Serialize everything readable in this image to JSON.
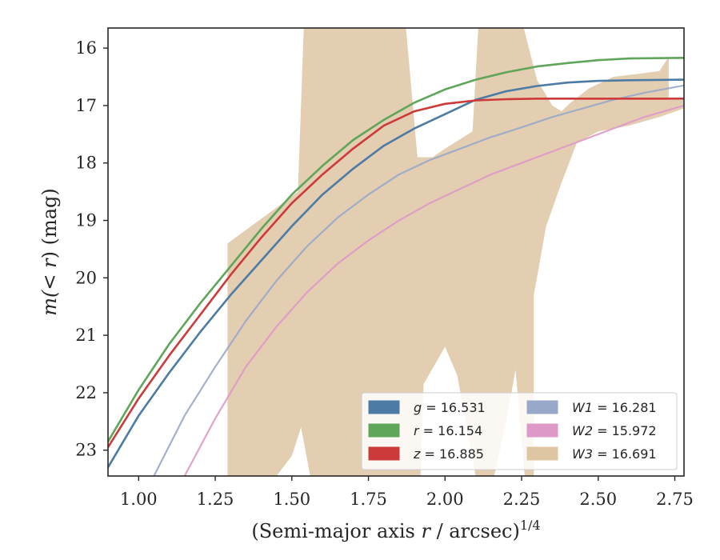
{
  "chart_data": {
    "type": "line",
    "xlabel": "(Semi-major axis",
    "xlabel_var": "r",
    "xlabel_unit": "/ arcsec)",
    "xlabel_exp": "1/4",
    "ylabel_prefix": "m(",
    "ylabel_var": "< r",
    "ylabel_suffix": ") (mag)",
    "xlim": [
      0.9,
      2.78
    ],
    "ylim": [
      23.45,
      15.65
    ],
    "y_inverted": true,
    "xticks": [
      "1.00",
      "1.25",
      "1.50",
      "1.75",
      "2.00",
      "2.25",
      "2.50",
      "2.75"
    ],
    "xtick_values": [
      1.0,
      1.25,
      1.5,
      1.75,
      2.0,
      2.25,
      2.5,
      2.75
    ],
    "yticks": [
      "16",
      "17",
      "18",
      "19",
      "20",
      "21",
      "22",
      "23"
    ],
    "ytick_values": [
      16,
      17,
      18,
      19,
      20,
      21,
      22,
      23
    ],
    "grid": false,
    "legend_position": "lower-right",
    "legend": [
      {
        "var": "g",
        "text": " = 16.531",
        "color": "#4c7ba6"
      },
      {
        "var": "r",
        "text": " = 16.154",
        "color": "#5fa55a"
      },
      {
        "var": "z",
        "text": " = 16.885",
        "color": "#cc3a3a"
      },
      {
        "var": "W1",
        "text": " = 16.281",
        "color": "#98a8c8"
      },
      {
        "var": "W2",
        "text": " = 15.972",
        "color": "#dd99c8"
      },
      {
        "var": "W3",
        "text": " = 16.691",
        "color": "#dfc6a3"
      }
    ],
    "series": [
      {
        "name": "g",
        "color": "#4c7ba6",
        "points": [
          [
            0.9,
            23.3
          ],
          [
            1.0,
            22.4
          ],
          [
            1.1,
            21.65
          ],
          [
            1.2,
            20.95
          ],
          [
            1.3,
            20.3
          ],
          [
            1.4,
            19.7
          ],
          [
            1.5,
            19.1
          ],
          [
            1.6,
            18.55
          ],
          [
            1.7,
            18.1
          ],
          [
            1.8,
            17.7
          ],
          [
            1.9,
            17.4
          ],
          [
            2.0,
            17.15
          ],
          [
            2.1,
            16.9
          ],
          [
            2.2,
            16.75
          ],
          [
            2.3,
            16.66
          ],
          [
            2.4,
            16.6
          ],
          [
            2.5,
            16.57
          ],
          [
            2.6,
            16.56
          ],
          [
            2.78,
            16.55
          ]
        ]
      },
      {
        "name": "r",
        "color": "#5fa55a",
        "points": [
          [
            0.9,
            22.85
          ],
          [
            1.0,
            21.95
          ],
          [
            1.1,
            21.15
          ],
          [
            1.2,
            20.45
          ],
          [
            1.3,
            19.8
          ],
          [
            1.4,
            19.15
          ],
          [
            1.5,
            18.55
          ],
          [
            1.6,
            18.05
          ],
          [
            1.7,
            17.6
          ],
          [
            1.8,
            17.25
          ],
          [
            1.9,
            16.95
          ],
          [
            2.0,
            16.72
          ],
          [
            2.1,
            16.55
          ],
          [
            2.2,
            16.42
          ],
          [
            2.3,
            16.32
          ],
          [
            2.4,
            16.26
          ],
          [
            2.5,
            16.21
          ],
          [
            2.6,
            16.18
          ],
          [
            2.78,
            16.17
          ]
        ]
      },
      {
        "name": "z",
        "color": "#cc3a3a",
        "points": [
          [
            0.9,
            22.95
          ],
          [
            1.0,
            22.1
          ],
          [
            1.1,
            21.35
          ],
          [
            1.2,
            20.65
          ],
          [
            1.3,
            19.95
          ],
          [
            1.4,
            19.3
          ],
          [
            1.5,
            18.7
          ],
          [
            1.6,
            18.2
          ],
          [
            1.7,
            17.75
          ],
          [
            1.8,
            17.35
          ],
          [
            1.9,
            17.1
          ],
          [
            2.0,
            16.97
          ],
          [
            2.1,
            16.91
          ],
          [
            2.2,
            16.89
          ],
          [
            2.3,
            16.88
          ],
          [
            2.5,
            16.88
          ],
          [
            2.78,
            16.88
          ]
        ]
      },
      {
        "name": "W1",
        "color": "#98a8c8",
        "points": [
          [
            1.05,
            23.45
          ],
          [
            1.15,
            22.4
          ],
          [
            1.25,
            21.55
          ],
          [
            1.35,
            20.75
          ],
          [
            1.45,
            20.05
          ],
          [
            1.55,
            19.45
          ],
          [
            1.65,
            18.95
          ],
          [
            1.75,
            18.55
          ],
          [
            1.85,
            18.2
          ],
          [
            1.95,
            17.95
          ],
          [
            2.05,
            17.75
          ],
          [
            2.15,
            17.55
          ],
          [
            2.25,
            17.38
          ],
          [
            2.35,
            17.2
          ],
          [
            2.45,
            17.05
          ],
          [
            2.55,
            16.9
          ],
          [
            2.65,
            16.78
          ],
          [
            2.78,
            16.65
          ]
        ]
      },
      {
        "name": "W2",
        "color": "#dd99c8",
        "points": [
          [
            1.15,
            23.45
          ],
          [
            1.25,
            22.45
          ],
          [
            1.35,
            21.55
          ],
          [
            1.45,
            20.85
          ],
          [
            1.55,
            20.25
          ],
          [
            1.65,
            19.75
          ],
          [
            1.75,
            19.35
          ],
          [
            1.85,
            19.0
          ],
          [
            1.95,
            18.7
          ],
          [
            2.05,
            18.45
          ],
          [
            2.15,
            18.2
          ],
          [
            2.25,
            18.0
          ],
          [
            2.35,
            17.8
          ],
          [
            2.45,
            17.6
          ],
          [
            2.55,
            17.4
          ],
          [
            2.65,
            17.2
          ],
          [
            2.78,
            17.0
          ]
        ]
      }
    ],
    "band": {
      "name": "W3",
      "color": "#dfc6a3",
      "upper": [
        [
          1.29,
          19.4
        ],
        [
          1.38,
          19.05
        ],
        [
          1.47,
          18.7
        ],
        [
          1.52,
          18.5
        ],
        [
          1.54,
          15.5
        ],
        [
          1.87,
          15.5
        ],
        [
          1.91,
          17.9
        ],
        [
          1.96,
          17.9
        ],
        [
          2.0,
          17.75
        ],
        [
          2.06,
          17.55
        ],
        [
          2.09,
          17.45
        ],
        [
          2.11,
          15.5
        ],
        [
          2.25,
          15.5
        ],
        [
          2.3,
          16.55
        ],
        [
          2.35,
          17.0
        ],
        [
          2.38,
          17.1
        ],
        [
          2.41,
          16.95
        ],
        [
          2.47,
          16.7
        ],
        [
          2.55,
          16.5
        ],
        [
          2.63,
          16.45
        ],
        [
          2.7,
          16.4
        ],
        [
          2.73,
          16.15
        ],
        [
          2.73,
          16.9
        ],
        [
          2.78,
          16.9
        ]
      ],
      "lower": [
        [
          2.78,
          17.05
        ],
        [
          2.7,
          17.2
        ],
        [
          2.6,
          17.35
        ],
        [
          2.5,
          17.45
        ],
        [
          2.43,
          17.65
        ],
        [
          2.38,
          18.35
        ],
        [
          2.33,
          19.1
        ],
        [
          2.29,
          20.3
        ],
        [
          2.29,
          23.45
        ],
        [
          2.26,
          23.45
        ],
        [
          2.23,
          21.6
        ],
        [
          2.2,
          22.5
        ],
        [
          2.16,
          23.45
        ],
        [
          2.1,
          23.45
        ],
        [
          2.04,
          21.7
        ],
        [
          2.0,
          21.2
        ],
        [
          1.93,
          21.85
        ],
        [
          1.92,
          23.45
        ],
        [
          1.56,
          23.45
        ],
        [
          1.53,
          22.6
        ],
        [
          1.5,
          23.1
        ],
        [
          1.45,
          23.45
        ],
        [
          1.29,
          23.45
        ]
      ]
    }
  }
}
